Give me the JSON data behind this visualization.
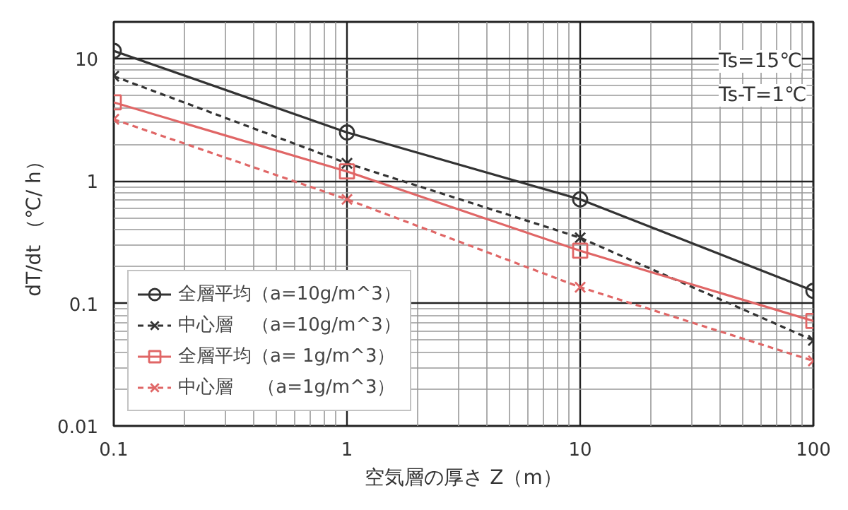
{
  "chart_data": {
    "type": "line",
    "xlabel": "空気層の厚さ Z（m）",
    "ylabel": "dT/dt （℃/ h）",
    "x": [
      0.1,
      1,
      10,
      100
    ],
    "log": "xy",
    "grid": true,
    "legend": "bottom left",
    "xlim": [
      0.1,
      100
    ],
    "xticks": [
      0.1,
      1,
      10,
      100
    ],
    "ylim": [
      0.01,
      20
    ],
    "yticks": [
      0.01,
      0.1,
      1,
      10
    ],
    "annotations": [
      "Ts=15℃",
      "Ts-T=1℃"
    ],
    "series": [
      {
        "name": "全層平均（a=10g/m^3）",
        "color": "#333333",
        "marker": "circle",
        "line_style": "solid",
        "values": [
          11.6,
          2.5,
          0.71,
          0.127
        ]
      },
      {
        "name": "中心層　（a=10g/m^3）",
        "color": "#333333",
        "marker": "cross",
        "line_style": "dashed",
        "values": [
          7.2,
          1.4,
          0.345,
          0.05
        ]
      },
      {
        "name": "全層平均（a= 1g/m^3）",
        "color": "#e06666",
        "marker": "square",
        "line_style": "solid",
        "values": [
          4.4,
          1.2,
          0.27,
          0.072
        ]
      },
      {
        "name": "中心層　 （a=1g/m^3）",
        "color": "#e06666",
        "marker": "cross",
        "line_style": "dashed",
        "values": [
          3.2,
          0.71,
          0.136,
          0.034
        ]
      }
    ]
  }
}
